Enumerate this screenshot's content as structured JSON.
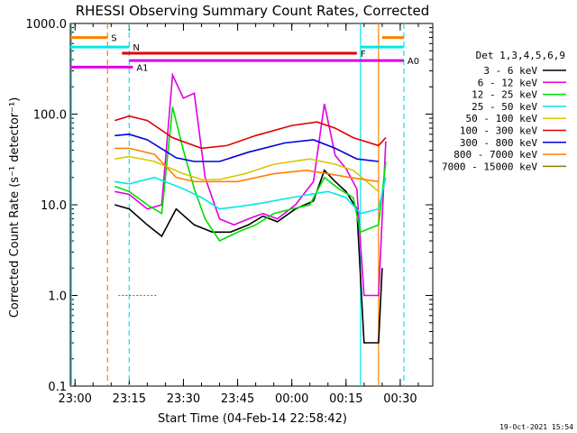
{
  "chart_data": {
    "type": "line",
    "title": "RHESSI Observing Summary Count Rates, Corrected",
    "xlabel": "Start Time (04-Feb-14 22:58:42)",
    "ylabel": "Corrected Count Rate (s⁻¹ detector⁻¹)",
    "y_scale": "log",
    "ylim": [
      0.1,
      1000
    ],
    "xlim": [
      "22:58:42",
      "00:39:00"
    ],
    "x_ticks": [
      "23:00",
      "23:15",
      "23:30",
      "23:45",
      "00:00",
      "00:15",
      "00:30"
    ],
    "y_ticks": [
      "0.1",
      "1.0",
      "10.0",
      "100.0",
      "1000.0"
    ],
    "legend_title": "Det 1,3,4,5,6,9",
    "legend_position": "right",
    "footer_date": "19-Oct-2021 15:54",
    "series": [
      {
        "name": "3 - 6 keV",
        "color": "#000000",
        "points": [
          [
            "23:11",
            10
          ],
          [
            "23:15",
            9
          ],
          [
            "23:20",
            6
          ],
          [
            "23:24",
            4.5
          ],
          [
            "23:28",
            9
          ],
          [
            "23:33",
            6
          ],
          [
            "23:38",
            5
          ],
          [
            "23:43",
            5
          ],
          [
            "23:48",
            6
          ],
          [
            "23:52",
            7.5
          ],
          [
            "23:56",
            6.5
          ],
          [
            "00:01",
            9
          ],
          [
            "00:06",
            11
          ],
          [
            "00:09",
            24
          ],
          [
            "00:12",
            18
          ],
          [
            "00:15",
            14
          ],
          [
            "00:18",
            9
          ],
          [
            "00:20",
            0.3
          ],
          [
            "00:24",
            0.3
          ],
          [
            "00:25",
            2
          ]
        ]
      },
      {
        "name": "6 - 12 keV",
        "color": "#e000e0",
        "points": [
          [
            "23:11",
            14
          ],
          [
            "23:15",
            13
          ],
          [
            "23:20",
            9
          ],
          [
            "23:24",
            10
          ],
          [
            "23:27",
            270
          ],
          [
            "23:30",
            150
          ],
          [
            "23:33",
            170
          ],
          [
            "23:36",
            20
          ],
          [
            "23:40",
            7
          ],
          [
            "23:44",
            6
          ],
          [
            "23:48",
            7
          ],
          [
            "23:52",
            8
          ],
          [
            "23:56",
            7
          ],
          [
            "00:01",
            10
          ],
          [
            "00:06",
            18
          ],
          [
            "00:09",
            130
          ],
          [
            "00:12",
            35
          ],
          [
            "00:15",
            25
          ],
          [
            "00:18",
            15
          ],
          [
            "00:20",
            1
          ],
          [
            "00:24",
            1
          ],
          [
            "00:26",
            50
          ]
        ]
      },
      {
        "name": "12 - 25 keV",
        "color": "#00e000",
        "points": [
          [
            "23:11",
            16
          ],
          [
            "23:15",
            14
          ],
          [
            "23:20",
            10
          ],
          [
            "23:24",
            8
          ],
          [
            "23:27",
            120
          ],
          [
            "23:30",
            40
          ],
          [
            "23:33",
            15
          ],
          [
            "23:36",
            7
          ],
          [
            "23:40",
            4
          ],
          [
            "23:45",
            5
          ],
          [
            "23:50",
            6
          ],
          [
            "23:55",
            8
          ],
          [
            "00:00",
            9
          ],
          [
            "00:05",
            10
          ],
          [
            "00:09",
            20
          ],
          [
            "00:13",
            15
          ],
          [
            "00:17",
            12
          ],
          [
            "00:19",
            5
          ],
          [
            "00:24",
            6
          ],
          [
            "00:26",
            30
          ]
        ]
      },
      {
        "name": "25 - 50 keV",
        "color": "#00e8e8",
        "points": [
          [
            "23:11",
            18
          ],
          [
            "23:15",
            17
          ],
          [
            "23:22",
            20
          ],
          [
            "23:30",
            15
          ],
          [
            "23:35",
            12
          ],
          [
            "23:40",
            9
          ],
          [
            "23:45",
            9.5
          ],
          [
            "23:52",
            10.5
          ],
          [
            "00:00",
            12
          ],
          [
            "00:05",
            13
          ],
          [
            "00:10",
            14
          ],
          [
            "00:15",
            12
          ],
          [
            "00:19",
            8
          ],
          [
            "00:24",
            9
          ],
          [
            "00:26",
            20
          ]
        ]
      },
      {
        "name": "50 - 100 keV",
        "color": "#d8c800",
        "points": [
          [
            "23:11",
            32
          ],
          [
            "23:15",
            34
          ],
          [
            "23:22",
            30
          ],
          [
            "23:30",
            22
          ],
          [
            "23:35",
            19
          ],
          [
            "23:40",
            19
          ],
          [
            "23:47",
            22
          ],
          [
            "23:55",
            28
          ],
          [
            "00:05",
            32
          ],
          [
            "00:12",
            28
          ],
          [
            "00:17",
            24
          ],
          [
            "00:24",
            14
          ]
        ]
      },
      {
        "name": "100 - 300 keV",
        "color": "#e00000",
        "points": [
          [
            "23:11",
            85
          ],
          [
            "23:15",
            95
          ],
          [
            "23:20",
            85
          ],
          [
            "23:27",
            55
          ],
          [
            "23:35",
            42
          ],
          [
            "23:42",
            45
          ],
          [
            "23:50",
            58
          ],
          [
            "00:00",
            75
          ],
          [
            "00:07",
            82
          ],
          [
            "00:12",
            70
          ],
          [
            "00:17",
            55
          ],
          [
            "00:24",
            45
          ],
          [
            "00:26",
            55
          ]
        ]
      },
      {
        "name": "300 - 800 keV",
        "color": "#0000e0",
        "points": [
          [
            "23:11",
            58
          ],
          [
            "23:15",
            60
          ],
          [
            "23:20",
            52
          ],
          [
            "23:28",
            33
          ],
          [
            "23:33",
            30
          ],
          [
            "23:40",
            30
          ],
          [
            "23:48",
            38
          ],
          [
            "23:58",
            48
          ],
          [
            "00:06",
            52
          ],
          [
            "00:12",
            42
          ],
          [
            "00:18",
            32
          ],
          [
            "00:24",
            30
          ]
        ]
      },
      {
        "name": "800 - 7000 keV",
        "color": "#ff8000",
        "points": [
          [
            "23:11",
            42
          ],
          [
            "23:15",
            42
          ],
          [
            "23:22",
            36
          ],
          [
            "23:28",
            20
          ],
          [
            "23:33",
            18
          ],
          [
            "23:45",
            18
          ],
          [
            "23:55",
            22
          ],
          [
            "00:04",
            24
          ],
          [
            "00:10",
            22
          ],
          [
            "00:16",
            20
          ],
          [
            "00:24",
            18
          ]
        ]
      },
      {
        "name": "7000 - 15000 keV",
        "color": "#808000",
        "points": [
          [
            "23:12",
            1.0
          ],
          [
            "23:13",
            1.0
          ],
          [
            "23:15",
            1.0
          ],
          [
            "23:17",
            1.0
          ],
          [
            "23:20",
            1.0
          ]
        ]
      }
    ],
    "annotations": [
      {
        "label": "S",
        "color": "#ff8000",
        "value": 700,
        "segments": [
          [
            "22:58:42",
            "23:09"
          ],
          [
            "00:25",
            "00:31"
          ]
        ]
      },
      {
        "label": "N",
        "color": "#00e8e8",
        "value": 550,
        "segments": [
          [
            "22:58:42",
            "23:15"
          ],
          [
            "00:19",
            "00:31"
          ]
        ]
      },
      {
        "label": "F",
        "color": "#e00000",
        "value": 470,
        "segments": [
          [
            "23:13",
            "00:18"
          ]
        ]
      },
      {
        "label": "A0",
        "color": "#e000e0",
        "value": 390,
        "segments": [
          [
            "23:15",
            "00:31"
          ]
        ]
      },
      {
        "label": "A1",
        "color": "#e000e0",
        "value": 330,
        "segments": [
          [
            "22:58:42",
            "23:16"
          ]
        ]
      }
    ],
    "vertical_lines": [
      {
        "time": "22:59",
        "color": "#00e8e8",
        "style": "solid"
      },
      {
        "time": "23:09",
        "color": "#ff8000",
        "style": "dashed"
      },
      {
        "time": "23:15",
        "color": "#00e8e8",
        "style": "dashed"
      },
      {
        "time": "00:19",
        "color": "#00e8e8",
        "style": "solid"
      },
      {
        "time": "00:24",
        "color": "#ff8000",
        "style": "solid"
      },
      {
        "time": "00:31",
        "color": "#00e8e8",
        "style": "dashed"
      }
    ]
  }
}
